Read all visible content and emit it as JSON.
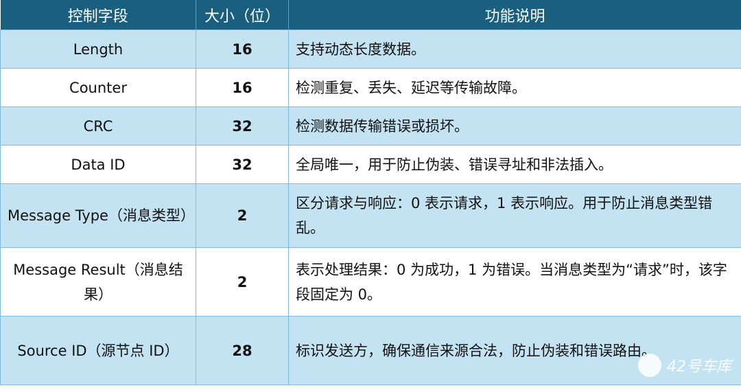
{
  "table": {
    "headers": [
      "控制字段",
      "大小（位）",
      "功能说明"
    ],
    "rows": [
      {
        "field": "Length",
        "size": "16",
        "desc": "支持动态长度数据。"
      },
      {
        "field": "Counter",
        "size": "16",
        "desc": "检测重复、丢失、延迟等传输故障。"
      },
      {
        "field": "CRC",
        "size": "32",
        "desc": "检测数据传输错误或损坏。"
      },
      {
        "field": "Data ID",
        "size": "32",
        "desc": "全局唯一，用于防止伪装、错误寻址和非法插入。"
      },
      {
        "field": "Message Type（消息类型）",
        "size": "2",
        "desc": "区分请求与响应：0 表示请求，1 表示响应。用于防止消息类型错乱。"
      },
      {
        "field": "Message Result（消息结果）",
        "size": "2",
        "desc": "表示处理结果：0 为成功，1 为错误。当消息类型为“请求”时，该字段固定为 0。"
      },
      {
        "field": "Source ID（源节点 ID）",
        "size": "28",
        "desc": "标识发送方，确保通信来源合法，防止伪装和错误路由。"
      }
    ]
  },
  "watermark": "42号车库",
  "colors": {
    "header_bg": "#1b5f80",
    "shade_row": "#c3e3f3",
    "border": "#7fbbe0"
  }
}
